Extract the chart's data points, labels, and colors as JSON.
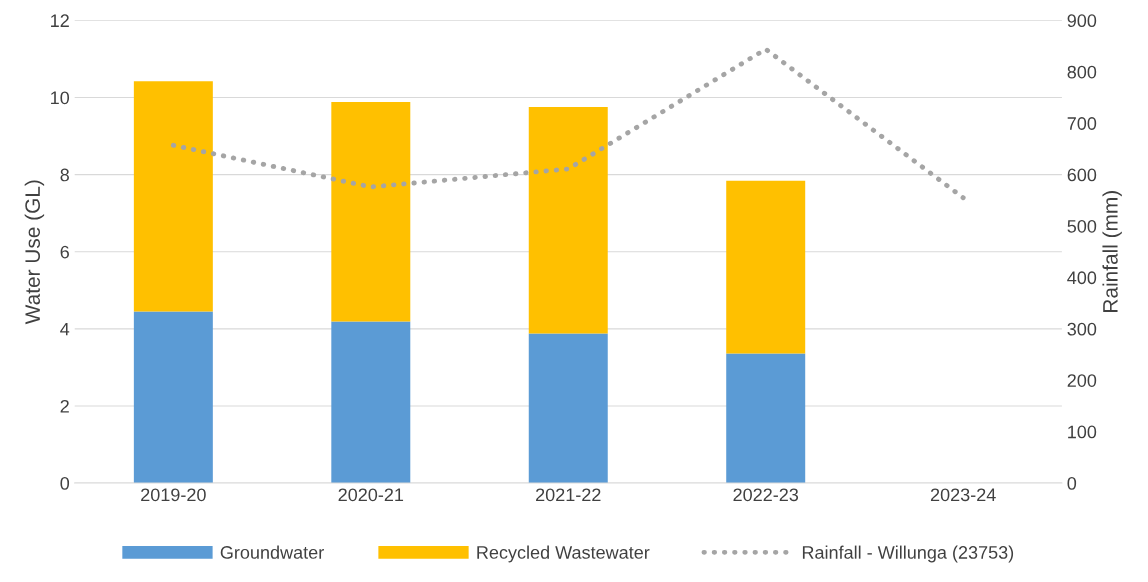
{
  "chart_data": {
    "type": "bar",
    "stacked": true,
    "ylabel": "Water Use (GL)",
    "y2label": "Rainfall (mm)",
    "categories": [
      "2019-20",
      "2020-21",
      "2021-22",
      "2022-23",
      "2023-24"
    ],
    "series": [
      {
        "name": "Groundwater",
        "color": "#5b9bd5",
        "values": [
          4.45,
          4.19,
          3.88,
          3.36,
          null
        ]
      },
      {
        "name": "Recycled Wastewater",
        "color": "#ffc000",
        "values": [
          5.97,
          5.69,
          5.87,
          4.48,
          null
        ]
      },
      {
        "name": "Rainfall - Willunga (23753)",
        "type": "line",
        "axis": "y2",
        "color": "#a5a5a5",
        "line_style": "dotted",
        "values": [
          657,
          576,
          611,
          844,
          555
        ]
      }
    ],
    "ylim": [
      0,
      12
    ],
    "yticks": [
      0,
      2,
      4,
      6,
      8,
      10,
      12
    ],
    "y2lim": [
      0,
      900
    ],
    "y2ticks": [
      0,
      100,
      200,
      300,
      400,
      500,
      600,
      700,
      800,
      900
    ],
    "grid": "y",
    "legend": "bottom"
  }
}
